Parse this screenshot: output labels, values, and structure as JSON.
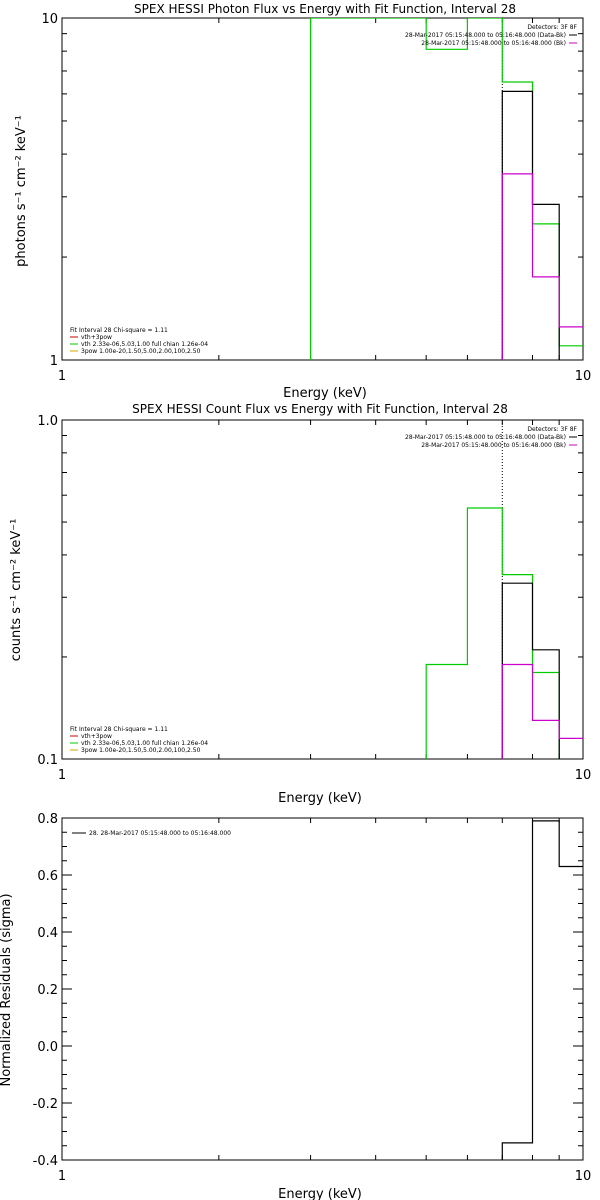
{
  "chart_data": [
    {
      "type": "line",
      "title": "SPEX HESSI Photon Flux vs Energy with Fit Function, Interval 28",
      "xlabel": "Energy (keV)",
      "ylabel": "photons s⁻¹ cm⁻² keV⁻¹",
      "xscale": "log",
      "yscale": "log",
      "xlim": [
        1,
        10
      ],
      "ylim": [
        1,
        10
      ],
      "x_ticklabels": [
        {
          "v": 1,
          "label": "1"
        },
        {
          "v": 10,
          "label": "10"
        }
      ],
      "y_ticklabels": [
        {
          "v": 1,
          "label": "1"
        },
        {
          "v": 10,
          "label": "10"
        }
      ],
      "legend_topright": {
        "header": "Detectors: 3F 8F",
        "entries": [
          {
            "text": "28-Mar-2017 05:15:48.000 to 05:16:48.000 (Data-Bk)",
            "color": "#000000"
          },
          {
            "text": "28-Mar-2017 05:15:48.000 to 05:16:48.000 (Bk)",
            "color": "#cc00cc"
          }
        ]
      },
      "legend_bottomleft": {
        "header": "Fit Interval 28   Chi-square = 1.11",
        "entries": [
          {
            "text": "vth+3pow",
            "color": "#cc0000"
          },
          {
            "text": "vth 2.33e-06,5.03,1.00  full chian 1.26e-04",
            "color": "#00cc00"
          },
          {
            "text": "3pow 1.00e-20,1.50,5.00,2.00,100,2.50",
            "color": "#ccaa00"
          }
        ]
      },
      "vline": {
        "x": 7.0,
        "style": "dotted"
      },
      "series": [
        {
          "color": "#00cc00",
          "x": [
            3.0,
            3.0,
            5.0,
            5.0,
            6.0,
            6.0,
            7.0,
            7.0,
            8.0,
            8.0,
            9.0,
            9.0,
            10.0
          ],
          "y": [
            1.0,
            10.0,
            10.0,
            8.1,
            8.1,
            10.0,
            10.0,
            6.5,
            6.5,
            2.5,
            2.5,
            1.1,
            1.1
          ]
        },
        {
          "color": "#000000",
          "x": [
            7.0,
            7.0,
            8.0,
            8.0,
            9.0,
            9.0
          ],
          "y": [
            1.0,
            6.1,
            6.1,
            2.85,
            2.85,
            1.0
          ]
        },
        {
          "color": "#cc00cc",
          "x": [
            7.0,
            7.0,
            8.0,
            8.0,
            9.0,
            9.0,
            10.0
          ],
          "y": [
            1.0,
            3.5,
            3.5,
            1.75,
            1.75,
            1.25,
            1.25
          ]
        }
      ]
    },
    {
      "type": "line",
      "title": "SPEX HESSI Count Flux vs Energy with Fit Function, Interval 28",
      "xlabel": "Energy (keV)",
      "ylabel": "counts s⁻¹ cm⁻² keV⁻¹",
      "xscale": "log",
      "yscale": "log",
      "xlim": [
        1,
        10
      ],
      "ylim": [
        0.1,
        1.0
      ],
      "x_ticklabels": [
        {
          "v": 1,
          "label": "1"
        },
        {
          "v": 10,
          "label": "10"
        }
      ],
      "y_ticklabels": [
        {
          "v": 0.1,
          "label": "0.1"
        },
        {
          "v": 1.0,
          "label": "1.0"
        }
      ],
      "legend_topright": {
        "header": "Detectors: 3F 8F",
        "entries": [
          {
            "text": "28-Mar-2017 05:15:48.000 to 05:16:48.000 (Data-Bk)",
            "color": "#000000"
          },
          {
            "text": "28-Mar-2017 05:15:48.000 to 05:16:48.000 (Bk)",
            "color": "#cc00cc"
          }
        ]
      },
      "legend_bottomleft": {
        "header": "Fit Interval 28   Chi-square = 1.11",
        "entries": [
          {
            "text": "vth+3pow",
            "color": "#cc0000"
          },
          {
            "text": "vth 2.33e-06,5.03,1.00  full chian 1.26e-04",
            "color": "#00cc00"
          },
          {
            "text": "3pow 1.00e-20,1.50,5.00,2.00,100,2.50",
            "color": "#ccaa00"
          }
        ]
      },
      "vline": {
        "x": 7.0,
        "style": "dotted"
      },
      "series": [
        {
          "color": "#00cc00",
          "x": [
            5.0,
            5.0,
            6.0,
            6.0,
            7.0,
            7.0,
            8.0,
            8.0,
            9.0,
            9.0
          ],
          "y": [
            0.1,
            0.19,
            0.19,
            0.55,
            0.55,
            0.35,
            0.35,
            0.18,
            0.18,
            0.1
          ]
        },
        {
          "color": "#000000",
          "x": [
            7.0,
            7.0,
            8.0,
            8.0,
            9.0,
            9.0
          ],
          "y": [
            0.1,
            0.33,
            0.33,
            0.21,
            0.21,
            0.1
          ]
        },
        {
          "color": "#cc00cc",
          "x": [
            7.0,
            7.0,
            8.0,
            8.0,
            9.0,
            9.0,
            10.0
          ],
          "y": [
            0.1,
            0.19,
            0.19,
            0.13,
            0.13,
            0.115,
            0.115
          ]
        }
      ]
    },
    {
      "type": "line",
      "title": "",
      "xlabel": "Energy (keV)",
      "ylabel": "Normalized Residuals (sigma)",
      "xscale": "log",
      "yscale": "linear",
      "xlim": [
        1,
        10
      ],
      "ylim": [
        -0.4,
        0.8
      ],
      "x_ticklabels": [
        {
          "v": 1,
          "label": "1"
        },
        {
          "v": 10,
          "label": "10"
        }
      ],
      "y_ticklabels": [
        {
          "v": -0.4,
          "label": "-0.4"
        },
        {
          "v": -0.2,
          "label": "-0.2"
        },
        {
          "v": 0.0,
          "label": "0.0"
        },
        {
          "v": 0.2,
          "label": "0.2"
        },
        {
          "v": 0.4,
          "label": "0.4"
        },
        {
          "v": 0.6,
          "label": "0.6"
        },
        {
          "v": 0.8,
          "label": "0.8"
        }
      ],
      "legend_topleft": {
        "entries": [
          {
            "text": "28. 28-Mar-2017 05:15:48.000 to 05:16:48.000",
            "color": "#000000"
          }
        ]
      },
      "series": [
        {
          "color": "#000000",
          "x": [
            7.0,
            7.0,
            8.0,
            8.0,
            9.0,
            9.0,
            10.0
          ],
          "y": [
            -0.4,
            -0.34,
            -0.34,
            0.79,
            0.79,
            0.63,
            0.63
          ]
        }
      ]
    }
  ]
}
